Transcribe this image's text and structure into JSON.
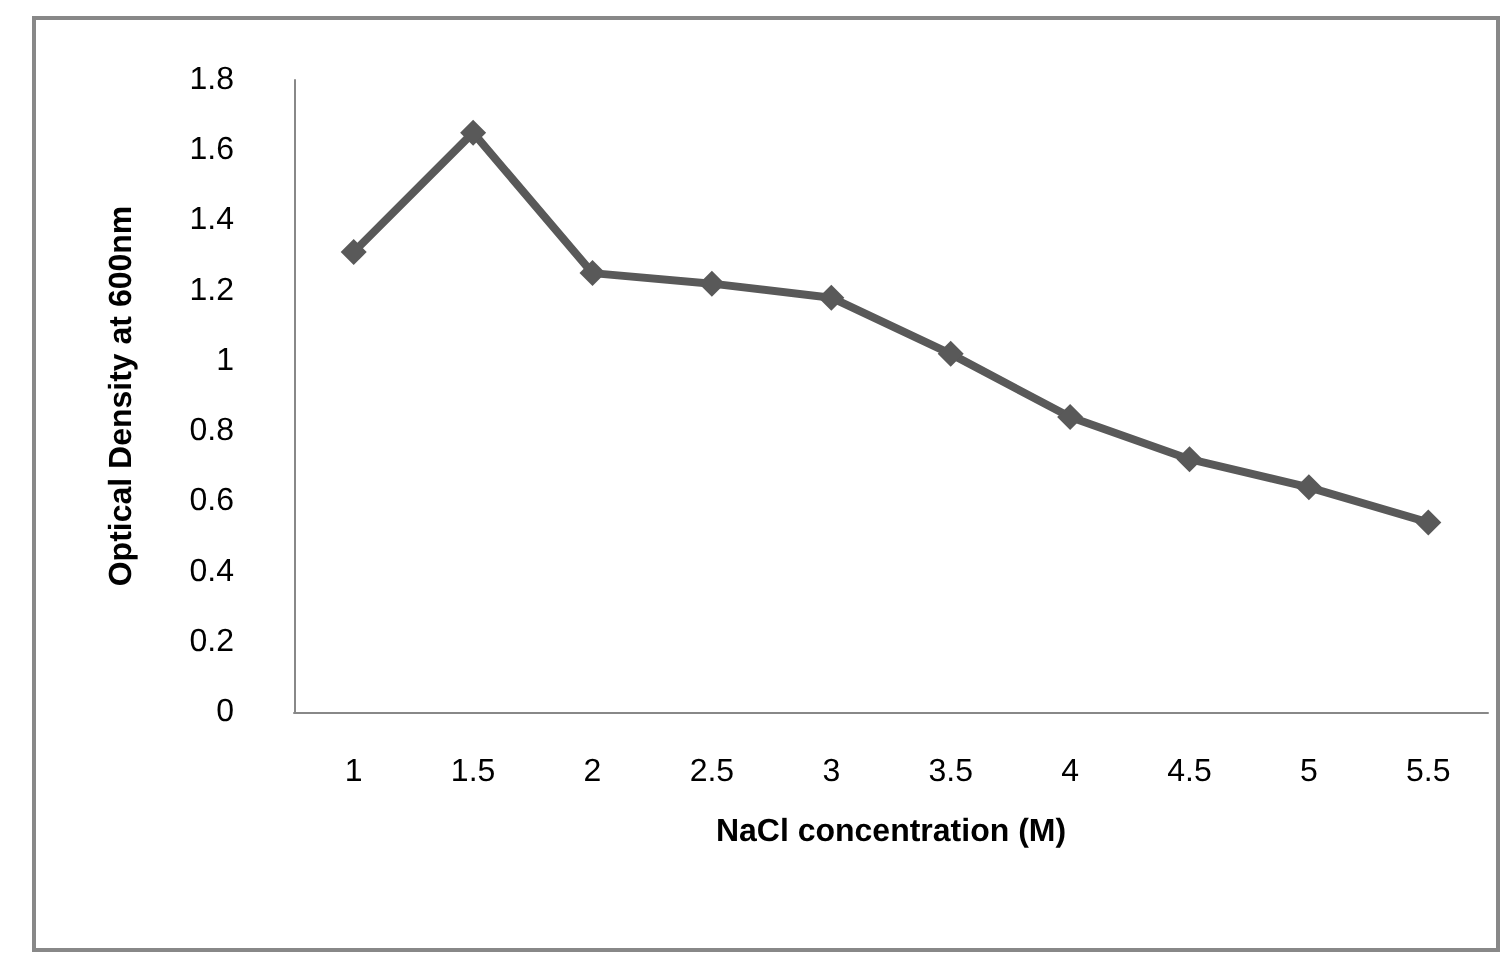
{
  "chart_data": {
    "type": "line",
    "xlabel": "NaCl concentration (M)",
    "ylabel": "Optical Density at 600nm",
    "categories": [
      "1",
      "1.5",
      "2",
      "2.5",
      "3",
      "3.5",
      "4",
      "4.5",
      "5",
      "5.5"
    ],
    "series": [
      {
        "color": "#595959",
        "values": [
          1.31,
          1.65,
          1.25,
          1.22,
          1.18,
          1.02,
          0.84,
          0.72,
          0.64,
          0.54
        ]
      }
    ],
    "ylim": [
      0,
      1.8
    ],
    "yticks": [
      0,
      0.2,
      0.4,
      0.6,
      0.8,
      1,
      1.2,
      1.4,
      1.6,
      1.8
    ],
    "grid": false,
    "marker": "diamond",
    "line_style": "solid"
  }
}
